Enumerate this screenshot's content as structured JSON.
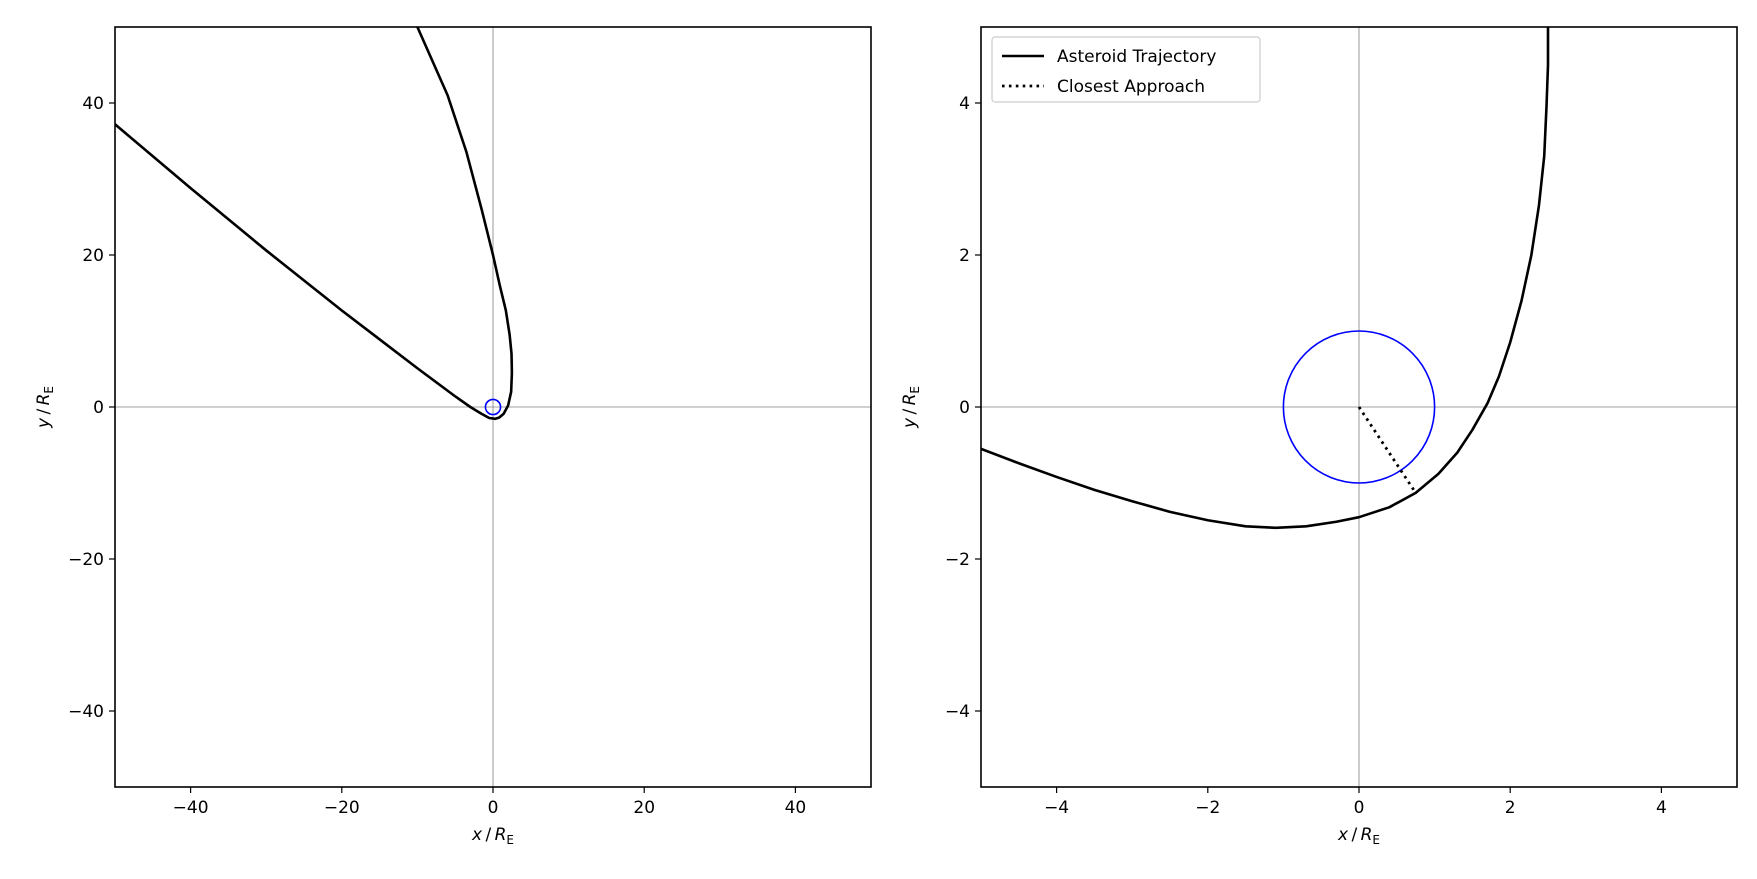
{
  "chart_data": [
    {
      "type": "line",
      "xlabel_var": "x",
      "ylabel_var": "y",
      "label_unit": "R",
      "label_unit_sub": "E",
      "xlim": [
        -50,
        50
      ],
      "ylim": [
        -50,
        50
      ],
      "xticks": [
        -40,
        -20,
        0,
        20,
        40
      ],
      "yticks": [
        -40,
        -20,
        0,
        20,
        40
      ],
      "xtick_labels": [
        "−40",
        "−20",
        "0",
        "20",
        "40"
      ],
      "ytick_labels": [
        "−40",
        "−20",
        "0",
        "20",
        "40"
      ],
      "grid": false,
      "reference_lines": {
        "x": 0,
        "y": 0
      },
      "earth": {
        "center": [
          0,
          0
        ],
        "radius": 1,
        "color": "#0000ff"
      },
      "series": [
        {
          "name": "Asteroid Trajectory",
          "style": "solid",
          "color": "#000000",
          "x": [
            -50.0,
            -40.0,
            -30.0,
            -20.0,
            -10.0,
            -5.0,
            -3.0,
            -1.5,
            -0.5,
            0.3,
            0.8,
            1.4,
            2.0,
            2.4,
            2.5,
            2.45,
            2.2,
            1.7,
            0.9,
            0.0,
            -1.5,
            -3.5,
            -6.0,
            -10.0
          ],
          "y": [
            37.2,
            28.8,
            20.6,
            12.7,
            5.1,
            1.4,
            0.0,
            -0.9,
            -1.45,
            -1.55,
            -1.4,
            -0.9,
            0.2,
            2.0,
            4.5,
            7.0,
            9.5,
            12.7,
            16.0,
            20.0,
            26.0,
            33.5,
            41.0,
            50.0
          ]
        }
      ]
    },
    {
      "type": "line",
      "xlabel_var": "x",
      "ylabel_var": "y",
      "label_unit": "R",
      "label_unit_sub": "E",
      "xlim": [
        -5,
        5
      ],
      "ylim": [
        -5,
        5
      ],
      "xticks": [
        -4,
        -2,
        0,
        2,
        4
      ],
      "yticks": [
        -4,
        -2,
        0,
        2,
        4
      ],
      "xtick_labels": [
        "−4",
        "−2",
        "0",
        "2",
        "4"
      ],
      "ytick_labels": [
        "−4",
        "−2",
        "0",
        "2",
        "4"
      ],
      "grid": false,
      "legend": "upper-left",
      "reference_lines": {
        "x": 0,
        "y": 0
      },
      "earth": {
        "center": [
          0,
          0
        ],
        "radius": 1,
        "color": "#0000ff"
      },
      "series": [
        {
          "name": "Asteroid Trajectory",
          "style": "solid",
          "color": "#000000",
          "x": [
            -5.0,
            -4.5,
            -4.0,
            -3.5,
            -3.0,
            -2.5,
            -2.0,
            -1.5,
            -1.1,
            -0.7,
            -0.3,
            0.0,
            0.4,
            0.75,
            1.05,
            1.3,
            1.5,
            1.7,
            1.85,
            2.0,
            2.15,
            2.28,
            2.38,
            2.45,
            2.48,
            2.5,
            2.5
          ],
          "y": [
            -0.55,
            -0.74,
            -0.92,
            -1.09,
            -1.24,
            -1.38,
            -1.49,
            -1.57,
            -1.59,
            -1.57,
            -1.51,
            -1.45,
            -1.32,
            -1.13,
            -0.88,
            -0.6,
            -0.3,
            0.05,
            0.4,
            0.85,
            1.4,
            2.0,
            2.65,
            3.3,
            3.95,
            4.5,
            5.0
          ]
        },
        {
          "name": "Closest Approach",
          "style": "dotted",
          "color": "#000000",
          "x": [
            0.0,
            0.73
          ],
          "y": [
            0.0,
            -1.1
          ]
        }
      ]
    }
  ]
}
